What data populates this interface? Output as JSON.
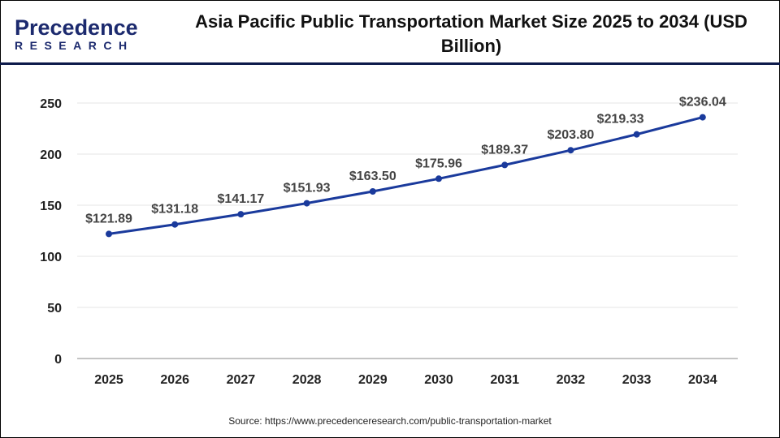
{
  "logo": {
    "line1": "Precedence",
    "line2": "RESEARCH"
  },
  "source": "Source: https://www.precedenceresearch.com/public-transportation-market",
  "colors": {
    "line": "#1a3a9c",
    "header_rule": "#0d1a4a",
    "label": "#444444"
  },
  "chart_data": {
    "type": "line",
    "title": "Asia Pacific Public Transportation Market Size 2025 to 2034 (USD Billion)",
    "categories": [
      "2025",
      "2026",
      "2027",
      "2028",
      "2029",
      "2030",
      "2031",
      "2032",
      "2033",
      "2034"
    ],
    "values": [
      121.89,
      131.18,
      141.17,
      151.93,
      163.5,
      175.96,
      189.37,
      203.8,
      219.33,
      236.04
    ],
    "data_labels": [
      "$121.89",
      "$131.18",
      "$141.17",
      "$151.93",
      "$163.50",
      "$175.96",
      "$189.37",
      "$203.80",
      "$219.33",
      "$236.04"
    ],
    "ylim": [
      0,
      250
    ],
    "yticks": [
      "0",
      "50",
      "100",
      "150",
      "200",
      "250"
    ],
    "grid": true,
    "xlabel": "",
    "ylabel": ""
  }
}
